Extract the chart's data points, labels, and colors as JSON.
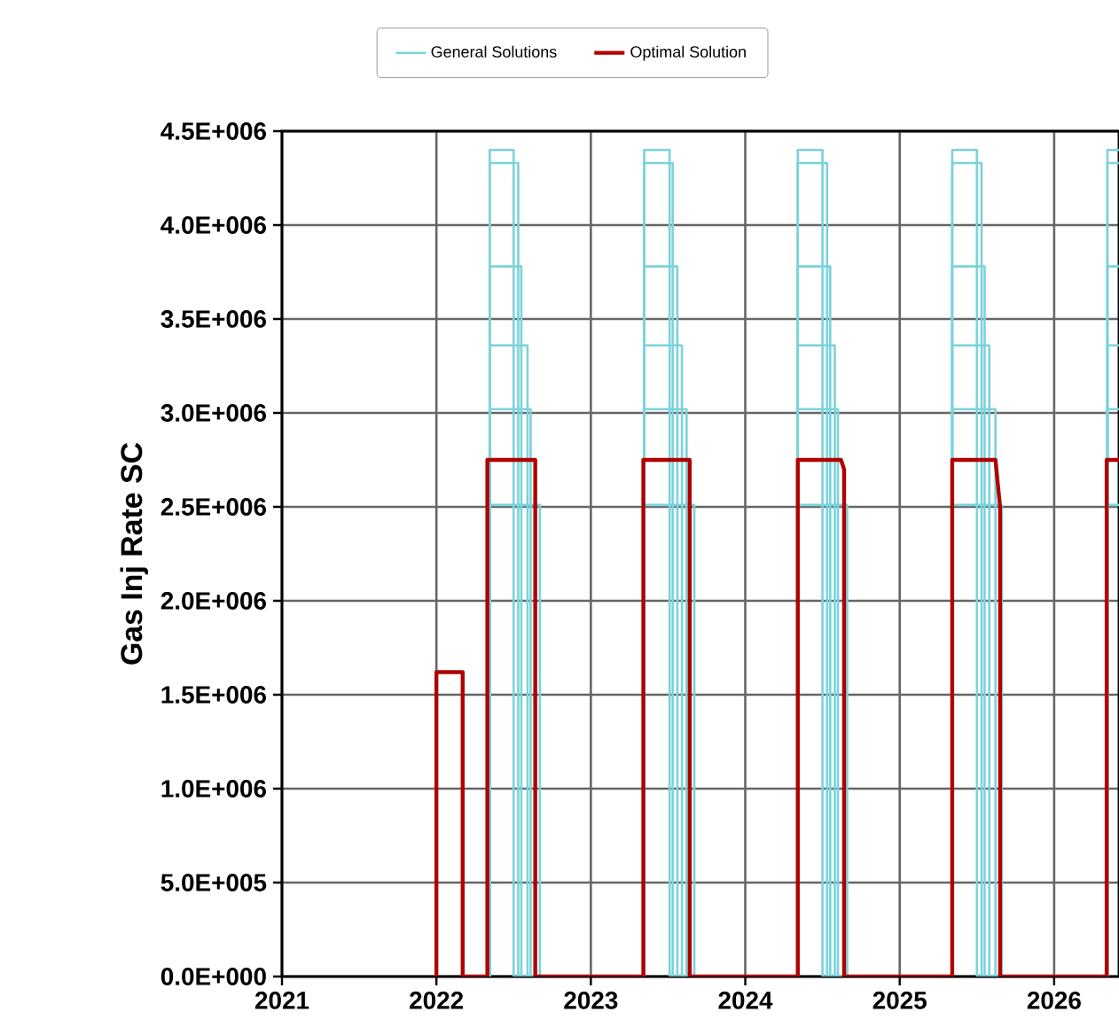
{
  "chart_data": {
    "type": "line",
    "ylabel": "Gas Inj Rate SC",
    "xlim": [
      2021,
      2026.42
    ],
    "xticks": [
      2021,
      2022,
      2023,
      2024,
      2025,
      2026
    ],
    "ylim": [
      0,
      4500000
    ],
    "yticks": [
      {
        "value": 0,
        "label": "0.0E+000"
      },
      {
        "value": 500000,
        "label": "5.0E+005"
      },
      {
        "value": 1000000,
        "label": "1.0E+006"
      },
      {
        "value": 1500000,
        "label": "1.5E+006"
      },
      {
        "value": 2000000,
        "label": "2.0E+006"
      },
      {
        "value": 2500000,
        "label": "2.5E+006"
      },
      {
        "value": 3000000,
        "label": "3.0E+006"
      },
      {
        "value": 3500000,
        "label": "3.5E+006"
      },
      {
        "value": 4000000,
        "label": "4.0E+006"
      },
      {
        "value": 4500000,
        "label": "4.5E+006"
      }
    ],
    "grid": true,
    "legend": "top",
    "series": [
      {
        "name": "General Solutions",
        "color": "#7ad3dc",
        "x": [
          2022.345,
          2022.345,
          2022.5,
          2022.5,
          2023.345,
          2023.345,
          2023.51,
          2023.51,
          2024.34,
          2024.34,
          2024.5,
          2024.5,
          2025.34,
          2025.34,
          2025.5,
          2025.5,
          2026.345,
          2026.345,
          2026.42
        ],
        "values": [
          0,
          4400000,
          4400000,
          0,
          0,
          4400000,
          4400000,
          0,
          0,
          4400000,
          4400000,
          0,
          0,
          4400000,
          4400000,
          0,
          0,
          4400000,
          4400000
        ]
      },
      {
        "color": "#7ad3dc",
        "x": [
          2022.345,
          2022.345,
          2022.53,
          2022.53,
          2023.345,
          2023.345,
          2023.53,
          2023.53,
          2024.34,
          2024.34,
          2024.53,
          2024.53,
          2025.34,
          2025.34,
          2025.53,
          2025.53,
          2026.345,
          2026.345,
          2026.42
        ],
        "values": [
          0,
          4330000,
          4330000,
          0,
          0,
          4330000,
          4330000,
          0,
          0,
          4330000,
          4330000,
          0,
          0,
          4330000,
          4330000,
          0,
          0,
          4330000,
          4330000
        ]
      },
      {
        "color": "#7ad3dc",
        "x": [
          2022.345,
          2022.345,
          2022.55,
          2022.55,
          2023.345,
          2023.345,
          2023.56,
          2023.56,
          2024.34,
          2024.34,
          2024.55,
          2024.55,
          2025.34,
          2025.34,
          2025.55,
          2025.55,
          2026.345,
          2026.345,
          2026.42
        ],
        "values": [
          0,
          3780000,
          3780000,
          0,
          0,
          3780000,
          3780000,
          0,
          0,
          3780000,
          3780000,
          0,
          0,
          3780000,
          3780000,
          0,
          0,
          3780000,
          3780000
        ]
      },
      {
        "color": "#7ad3dc",
        "x": [
          2022.345,
          2022.345,
          2022.59,
          2022.59,
          2023.345,
          2023.345,
          2023.59,
          2023.59,
          2024.34,
          2024.34,
          2024.58,
          2024.58,
          2025.34,
          2025.34,
          2025.58,
          2025.58,
          2026.345,
          2026.345,
          2026.42
        ],
        "values": [
          0,
          3360000,
          3360000,
          0,
          0,
          3360000,
          3360000,
          0,
          0,
          3360000,
          3360000,
          0,
          0,
          3360000,
          3360000,
          0,
          0,
          3360000,
          3360000
        ]
      },
      {
        "color": "#7ad3dc",
        "x": [
          2022.345,
          2022.345,
          2022.61,
          2022.61,
          2023.345,
          2023.345,
          2023.62,
          2023.62,
          2024.34,
          2024.34,
          2024.6,
          2024.6,
          2025.34,
          2025.34,
          2025.62,
          2025.62,
          2026.345,
          2026.345,
          2026.42
        ],
        "values": [
          0,
          3020000,
          3020000,
          0,
          0,
          3020000,
          3020000,
          0,
          0,
          3020000,
          3020000,
          0,
          0,
          3020000,
          3020000,
          0,
          0,
          3020000,
          3020000
        ]
      },
      {
        "color": "#7ad3dc",
        "x": [
          2022.345,
          2022.345,
          2022.67,
          2022.67,
          2023.345,
          2023.345,
          2023.67,
          2023.67,
          2024.34,
          2024.34,
          2024.66,
          2024.66,
          2025.34,
          2025.34,
          2025.66,
          2025.66,
          2026.345,
          2026.345,
          2026.42
        ],
        "values": [
          0,
          2510000,
          2510000,
          0,
          0,
          2510000,
          2510000,
          0,
          0,
          2510000,
          2510000,
          0,
          0,
          2510000,
          2510000,
          0,
          0,
          2510000,
          2510000
        ]
      },
      {
        "name": "Optimal Solution",
        "color": "#b00000",
        "x": [
          2022.0,
          2022.0,
          2022.17,
          2022.17,
          2022.33,
          2022.33,
          2022.64,
          2022.64,
          2023.34,
          2023.34,
          2023.64,
          2023.64,
          2024.34,
          2024.34,
          2024.62,
          2024.64,
          2024.64,
          2025.34,
          2025.34,
          2025.62,
          2025.65,
          2025.65,
          2026.34,
          2026.34,
          2026.42
        ],
        "values": [
          0,
          1620000,
          1620000,
          0,
          0,
          2750000,
          2750000,
          0,
          0,
          2750000,
          2750000,
          0,
          0,
          2750000,
          2750000,
          2700000,
          0,
          0,
          2750000,
          2750000,
          2500000,
          0,
          0,
          2750000,
          2750000
        ]
      }
    ]
  }
}
